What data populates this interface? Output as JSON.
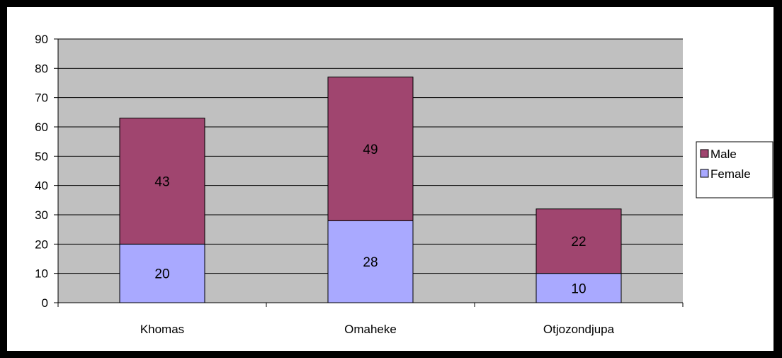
{
  "chart_data": {
    "type": "bar",
    "stacked": true,
    "categories": [
      "Khomas",
      "Omaheke",
      "Otjozondjupa"
    ],
    "series": [
      {
        "name": "Female",
        "values": [
          20,
          28,
          10
        ],
        "color": "#a9a9ff"
      },
      {
        "name": "Male",
        "values": [
          43,
          49,
          22
        ],
        "color": "#a0456f"
      }
    ],
    "title": "",
    "xlabel": "",
    "ylabel": "",
    "ylim": [
      0,
      90
    ],
    "yticks": [
      "0",
      "10",
      "20",
      "30",
      "40",
      "50",
      "60",
      "70",
      "80",
      "90"
    ],
    "grid": true,
    "plot_background": "#c0c0c0",
    "legend": {
      "position": "right",
      "entries": [
        "Male",
        "Female"
      ]
    }
  }
}
